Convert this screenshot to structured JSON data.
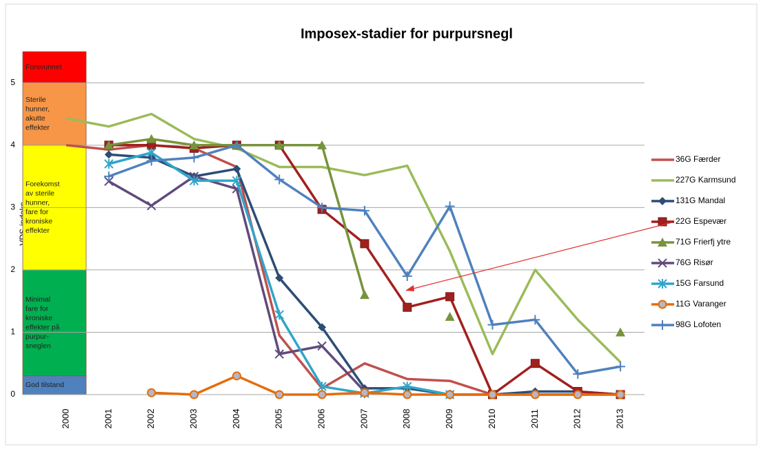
{
  "chart_data": {
    "type": "line",
    "title": "Imposex-stadier for  purpursnegl",
    "y_label": "VDS-indeks",
    "categories": [
      "2000",
      "2001",
      "2002",
      "2003",
      "2004",
      "2005",
      "2006",
      "2007",
      "2008",
      "2009",
      "2010",
      "2011",
      "2012",
      "2013"
    ],
    "ylim": [
      0,
      5.5
    ],
    "yticks": [
      0,
      1,
      2,
      3,
      4,
      5
    ],
    "grid": true,
    "legend": "right",
    "zones": [
      {
        "from": 5,
        "to": 5.5,
        "color": "#ff0000",
        "lines": [
          "Forsvunnet"
        ]
      },
      {
        "from": 4,
        "to": 5,
        "color": "#f79646",
        "lines": [
          "Sterile",
          "hunner,",
          "akutte",
          "effekter"
        ]
      },
      {
        "from": 2,
        "to": 4,
        "color": "#ffff00",
        "lines": [
          "Forekomst",
          "av sterile",
          "hunner,",
          "fare for",
          "kroniske",
          "effekter"
        ]
      },
      {
        "from": 0.3,
        "to": 2,
        "color": "#00b050",
        "lines": [
          "Minimal",
          "fare for",
          "kroniske",
          "effekter på",
          "purpur-",
          "sneglen"
        ]
      },
      {
        "from": 0,
        "to": 0.3,
        "color": "#4f81bd",
        "lines": [
          "God tilstand"
        ]
      }
    ],
    "series": [
      {
        "name": "36G Færder",
        "color": "#c0504d",
        "marker": "none",
        "values": [
          4.0,
          3.93,
          4.0,
          3.95,
          3.65,
          0.95,
          0.1,
          0.5,
          0.25,
          0.22,
          0,
          0,
          0,
          0
        ]
      },
      {
        "name": "227G Karmsund",
        "color": "#9bbb59",
        "marker": "none",
        "values": [
          4.43,
          4.3,
          4.5,
          4.1,
          3.95,
          3.65,
          3.65,
          3.52,
          3.67,
          2.3,
          0.65,
          2.0,
          1.2,
          0.52
        ]
      },
      {
        "name": "131G Mandal",
        "color": "#2c4d75",
        "marker": "diamond",
        "values": [
          null,
          3.85,
          3.8,
          3.5,
          3.62,
          1.87,
          1.08,
          0.1,
          0.1,
          0,
          0,
          0.05,
          0.05,
          0
        ]
      },
      {
        "name": "22G Espevær",
        "color": "#a0201e",
        "marker": "square",
        "values": [
          null,
          4.0,
          4.0,
          3.95,
          4.0,
          4.0,
          2.97,
          2.42,
          1.4,
          1.57,
          0,
          0.5,
          0.05,
          0
        ]
      },
      {
        "name": "71G Frierfj ytre",
        "color": "#77933c",
        "marker": "triangle",
        "values": [
          null,
          4.0,
          4.1,
          4.0,
          4.0,
          4.0,
          4.0,
          1.6,
          null,
          1.25,
          null,
          null,
          null,
          1.0
        ]
      },
      {
        "name": "76G Risør",
        "color": "#604a7b",
        "marker": "x",
        "values": [
          null,
          3.42,
          3.03,
          3.5,
          3.3,
          0.65,
          0.78,
          0.05,
          null,
          null,
          null,
          null,
          null,
          null
        ]
      },
      {
        "name": "15G Farsund",
        "color": "#31a5c9",
        "marker": "star",
        "values": [
          null,
          3.7,
          3.88,
          3.43,
          3.43,
          1.28,
          0.13,
          0.02,
          0.13,
          0,
          null,
          null,
          null,
          null
        ]
      },
      {
        "name": "11G Varanger",
        "color": "#e46c0a",
        "marker": "circle",
        "values": [
          null,
          null,
          0.03,
          0,
          0.3,
          0,
          0,
          0.03,
          0,
          0,
          0,
          0,
          0,
          0
        ]
      },
      {
        "name": "98G Lofoten",
        "color": "#4f81bd",
        "marker": "plus",
        "values": [
          null,
          3.5,
          3.75,
          3.8,
          4.0,
          3.45,
          3.0,
          2.95,
          1.9,
          3.02,
          1.12,
          1.2,
          0.33,
          0.45
        ]
      }
    ]
  }
}
